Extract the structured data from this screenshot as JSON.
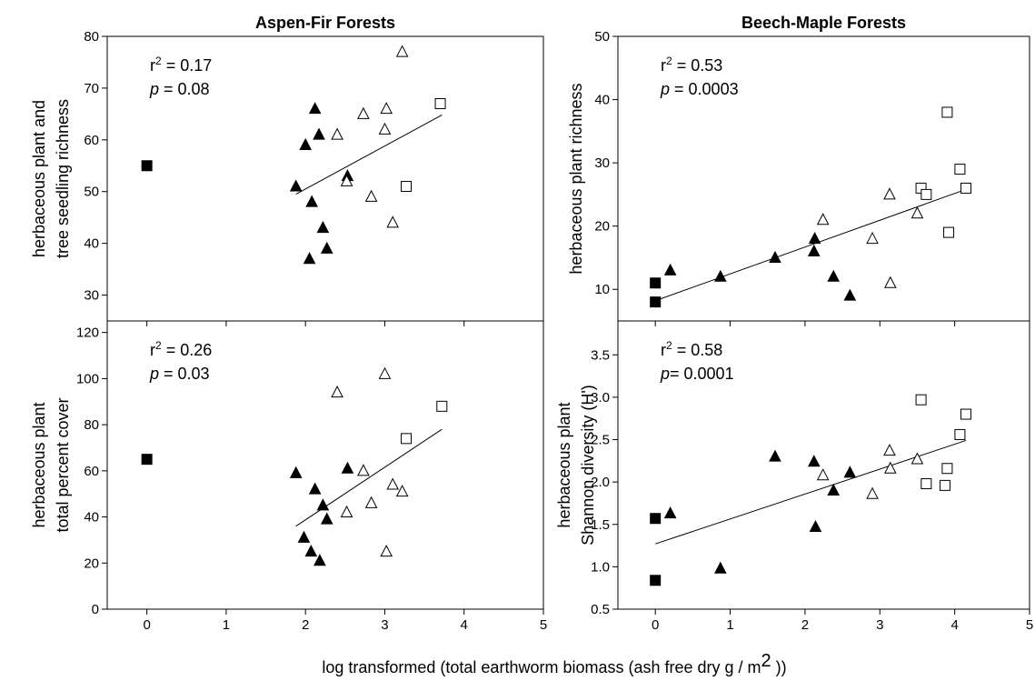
{
  "figure": {
    "xlabel": "log transformed (total earthworm biomass (ash free dry g / m",
    "xlabel_sup": "2",
    "xlabel_tail": " ))"
  },
  "chart_data": [
    {
      "type": "scatter",
      "title": "Aspen-Fir Forests",
      "ylabel_lines": [
        "herbaceous plant and",
        "tree seedling richness"
      ],
      "xlim": [
        -0.5,
        5
      ],
      "ylim": [
        25,
        80
      ],
      "xticks": [
        0,
        1,
        2,
        3,
        4,
        5
      ],
      "yticks": [
        30,
        40,
        50,
        60,
        70,
        80
      ],
      "show_xticklabels": false,
      "stats": {
        "r2_prefix": "r",
        "r2_sup": "2",
        "r2_value": " = 0.17",
        "p_label": "p",
        "p_value": " = 0.08"
      },
      "regression": {
        "x": [
          1.88,
          3.72
        ],
        "y": [
          49.5,
          64.8
        ]
      },
      "series": [
        {
          "marker": "filled-square",
          "points": [
            [
              0,
              55
            ]
          ]
        },
        {
          "marker": "filled-triangle",
          "points": [
            [
              1.88,
              51
            ],
            [
              2.0,
              59
            ],
            [
              2.05,
              37
            ],
            [
              2.08,
              48
            ],
            [
              2.12,
              66
            ],
            [
              2.17,
              61
            ],
            [
              2.22,
              43
            ],
            [
              2.27,
              39
            ],
            [
              2.53,
              53
            ]
          ]
        },
        {
          "marker": "open-triangle",
          "points": [
            [
              2.4,
              61
            ],
            [
              2.52,
              52
            ],
            [
              2.73,
              65
            ],
            [
              2.83,
              49
            ],
            [
              3.0,
              62
            ],
            [
              3.02,
              66
            ],
            [
              3.1,
              44
            ],
            [
              3.22,
              77
            ]
          ]
        },
        {
          "marker": "open-square",
          "points": [
            [
              3.27,
              51
            ],
            [
              3.7,
              67
            ]
          ]
        }
      ]
    },
    {
      "type": "scatter",
      "title": "Beech-Maple Forests",
      "ylabel_lines": [
        "herbaceous plant richness"
      ],
      "xlim": [
        -0.5,
        5
      ],
      "ylim": [
        5,
        50
      ],
      "xticks": [
        0,
        1,
        2,
        3,
        4,
        5
      ],
      "yticks": [
        10,
        20,
        30,
        40,
        50
      ],
      "show_xticklabels": false,
      "stats": {
        "r2_prefix": "r",
        "r2_sup": "2",
        "r2_value": " = 0.53",
        "p_label": "p",
        "p_value": " = 0.0003"
      },
      "regression": {
        "x": [
          0,
          4.15
        ],
        "y": [
          8.2,
          25.8
        ]
      },
      "series": [
        {
          "marker": "filled-square",
          "points": [
            [
              0,
              8
            ],
            [
              0,
              11
            ]
          ]
        },
        {
          "marker": "filled-triangle",
          "points": [
            [
              0.2,
              13
            ],
            [
              0.87,
              12
            ],
            [
              1.6,
              15
            ],
            [
              2.12,
              16
            ],
            [
              2.13,
              18
            ],
            [
              2.38,
              12
            ],
            [
              2.6,
              9
            ]
          ]
        },
        {
          "marker": "open-triangle",
          "points": [
            [
              2.24,
              21
            ],
            [
              2.9,
              18
            ],
            [
              3.13,
              25
            ],
            [
              3.14,
              11
            ],
            [
              3.5,
              22
            ]
          ]
        },
        {
          "marker": "open-square",
          "points": [
            [
              3.55,
              26
            ],
            [
              3.62,
              25
            ],
            [
              3.9,
              38
            ],
            [
              3.92,
              19
            ],
            [
              4.07,
              29
            ],
            [
              4.15,
              26
            ]
          ]
        }
      ]
    },
    {
      "type": "scatter",
      "ylabel_lines": [
        "herbaceous plant",
        "total percent cover"
      ],
      "xlim": [
        -0.5,
        5
      ],
      "ylim": [
        0,
        125
      ],
      "xticks": [
        0,
        1,
        2,
        3,
        4,
        5
      ],
      "yticks": [
        0,
        20,
        40,
        60,
        80,
        100,
        120
      ],
      "show_xticklabels": true,
      "stats": {
        "r2_prefix": "r",
        "r2_sup": "2",
        "r2_value": " = 0.26",
        "p_label": "p",
        "p_value": " = 0.03"
      },
      "regression": {
        "x": [
          1.88,
          3.72
        ],
        "y": [
          36,
          78
        ]
      },
      "series": [
        {
          "marker": "filled-square",
          "points": [
            [
              0,
              65
            ]
          ]
        },
        {
          "marker": "filled-triangle",
          "points": [
            [
              1.88,
              59
            ],
            [
              1.98,
              31
            ],
            [
              2.07,
              25
            ],
            [
              2.12,
              52
            ],
            [
              2.18,
              21
            ],
            [
              2.22,
              45
            ],
            [
              2.27,
              39
            ],
            [
              2.53,
              61
            ]
          ]
        },
        {
          "marker": "open-triangle",
          "points": [
            [
              2.4,
              94
            ],
            [
              2.52,
              42
            ],
            [
              2.73,
              60
            ],
            [
              2.83,
              46
            ],
            [
              3.0,
              102
            ],
            [
              3.02,
              25
            ],
            [
              3.1,
              54
            ],
            [
              3.22,
              51
            ]
          ]
        },
        {
          "marker": "open-square",
          "points": [
            [
              3.27,
              74
            ],
            [
              3.72,
              88
            ]
          ]
        }
      ]
    },
    {
      "type": "scatter",
      "ylabel_lines": [
        "herbaceous plant",
        "Shannon diversity (H')"
      ],
      "xlim": [
        -0.5,
        5
      ],
      "ylim": [
        0.5,
        3.9
      ],
      "xticks": [
        0,
        1,
        2,
        3,
        4,
        5
      ],
      "yticks": [
        0.5,
        1.0,
        1.5,
        2.0,
        2.5,
        3.0,
        3.5
      ],
      "yticklabels": [
        "0.5",
        "1.0",
        "1.5",
        "2.0",
        "2.5",
        "3.0",
        "3.5"
      ],
      "show_xticklabels": true,
      "stats": {
        "r2_prefix": "r",
        "r2_sup": "2",
        "r2_value": " = 0.58",
        "p_label": "p",
        "p_value": "= 0.0001"
      },
      "regression": {
        "x": [
          0,
          4.15
        ],
        "y": [
          1.27,
          2.49
        ]
      },
      "series": [
        {
          "marker": "filled-square",
          "points": [
            [
              0,
              0.84
            ],
            [
              0,
              1.57
            ]
          ]
        },
        {
          "marker": "filled-triangle",
          "points": [
            [
              0.2,
              1.63
            ],
            [
              0.87,
              0.98
            ],
            [
              1.6,
              2.3
            ],
            [
              2.12,
              2.24
            ],
            [
              2.14,
              1.47
            ],
            [
              2.38,
              1.9
            ],
            [
              2.6,
              2.11
            ]
          ]
        },
        {
          "marker": "open-triangle",
          "points": [
            [
              2.24,
              2.08
            ],
            [
              2.9,
              1.86
            ],
            [
              3.13,
              2.37
            ],
            [
              3.14,
              2.16
            ],
            [
              3.5,
              2.27
            ]
          ]
        },
        {
          "marker": "open-square",
          "points": [
            [
              3.55,
              2.97
            ],
            [
              3.62,
              1.98
            ],
            [
              3.87,
              1.96
            ],
            [
              3.9,
              2.16
            ],
            [
              4.07,
              2.56
            ],
            [
              4.15,
              2.8
            ]
          ]
        }
      ]
    }
  ]
}
